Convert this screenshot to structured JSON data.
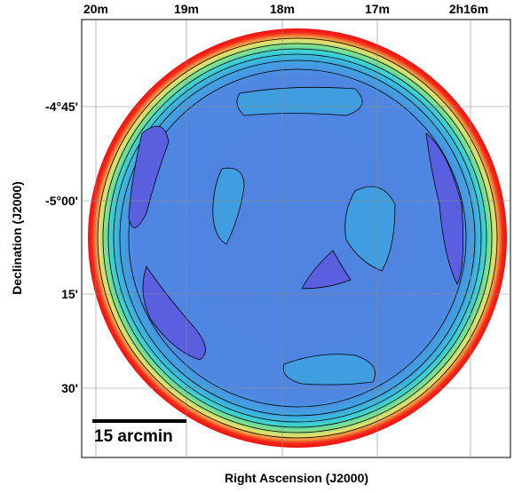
{
  "figure": {
    "x_label": "Right Ascension (J2000)",
    "y_label": "Declination (J2000)",
    "x_ticks": [
      "20m",
      "19m",
      "18m",
      "17m",
      "2h16m"
    ],
    "y_ticks": [
      "-4°45'",
      "-5°00'",
      "15'",
      "30'"
    ],
    "scale_bar": "15 arcmin"
  }
}
